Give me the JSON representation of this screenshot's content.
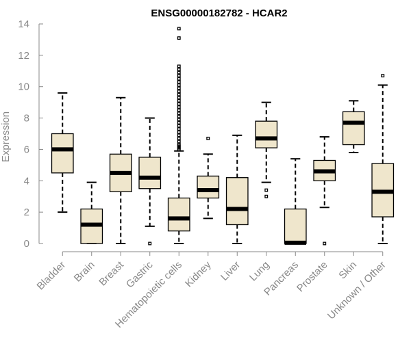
{
  "chart_data": {
    "type": "box",
    "title": "ENSG00000182782 - HCAR2",
    "xlabel": "",
    "ylabel": "Expression",
    "ylim": [
      0,
      14
    ],
    "yticks": [
      0,
      2,
      4,
      6,
      8,
      10,
      12,
      14
    ],
    "grid": false,
    "box_color": "#EFE6CC",
    "categories": [
      "Bladder",
      "Brain",
      "Breast",
      "Gastric",
      "Hematopoietic cells",
      "Kidney",
      "Liver",
      "Lung",
      "Pancreas",
      "Prostate",
      "Skin",
      "Unknown / Other"
    ],
    "boxes": [
      {
        "category": "Bladder",
        "whisker_low": 2.0,
        "q1": 4.5,
        "median": 6.0,
        "q3": 7.0,
        "whisker_high": 9.6,
        "outliers": []
      },
      {
        "category": "Brain",
        "whisker_low": 0.0,
        "q1": 0.0,
        "median": 1.2,
        "q3": 2.2,
        "whisker_high": 3.9,
        "outliers": []
      },
      {
        "category": "Breast",
        "whisker_low": 0.0,
        "q1": 3.3,
        "median": 4.5,
        "q3": 5.7,
        "whisker_high": 9.3,
        "outliers": []
      },
      {
        "category": "Gastric",
        "whisker_low": 1.1,
        "q1": 3.5,
        "median": 4.2,
        "q3": 5.5,
        "whisker_high": 8.0,
        "outliers": [
          0.0
        ]
      },
      {
        "category": "Hematopoietic cells",
        "whisker_low": 0.0,
        "q1": 0.8,
        "median": 1.6,
        "q3": 2.9,
        "whisker_high": 5.9,
        "outliers": [
          6.0,
          6.1,
          6.2,
          6.3,
          6.5,
          6.7,
          6.9,
          7.1,
          7.3,
          7.5,
          7.7,
          7.9,
          8.1,
          8.3,
          8.5,
          8.7,
          8.9,
          9.1,
          9.3,
          9.5,
          9.7,
          9.9,
          10.1,
          10.3,
          10.5,
          10.7,
          10.9,
          11.1,
          11.3,
          13.1,
          13.7
        ]
      },
      {
        "category": "Kidney",
        "whisker_low": 1.6,
        "q1": 2.9,
        "median": 3.4,
        "q3": 4.3,
        "whisker_high": 5.7,
        "outliers": [
          6.7
        ]
      },
      {
        "category": "Liver",
        "whisker_low": 0.0,
        "q1": 1.2,
        "median": 2.2,
        "q3": 4.2,
        "whisker_high": 6.9,
        "outliers": []
      },
      {
        "category": "Lung",
        "whisker_low": 3.9,
        "q1": 6.1,
        "median": 6.7,
        "q3": 7.8,
        "whisker_high": 9.0,
        "outliers": [
          3.0,
          3.4
        ]
      },
      {
        "category": "Pancreas",
        "whisker_low": 0.0,
        "q1": 0.0,
        "median": 0.05,
        "q3": 2.2,
        "whisker_high": 5.4,
        "outliers": []
      },
      {
        "category": "Prostate",
        "whisker_low": 2.3,
        "q1": 4.0,
        "median": 4.6,
        "q3": 5.3,
        "whisker_high": 6.8,
        "outliers": [
          0.0
        ]
      },
      {
        "category": "Skin",
        "whisker_low": 5.8,
        "q1": 6.3,
        "median": 7.7,
        "q3": 8.4,
        "whisker_high": 9.1,
        "outliers": []
      },
      {
        "category": "Unknown / Other",
        "whisker_low": 0.0,
        "q1": 1.7,
        "median": 3.3,
        "q3": 5.1,
        "whisker_high": 10.1,
        "outliers": [
          10.7
        ]
      }
    ]
  }
}
